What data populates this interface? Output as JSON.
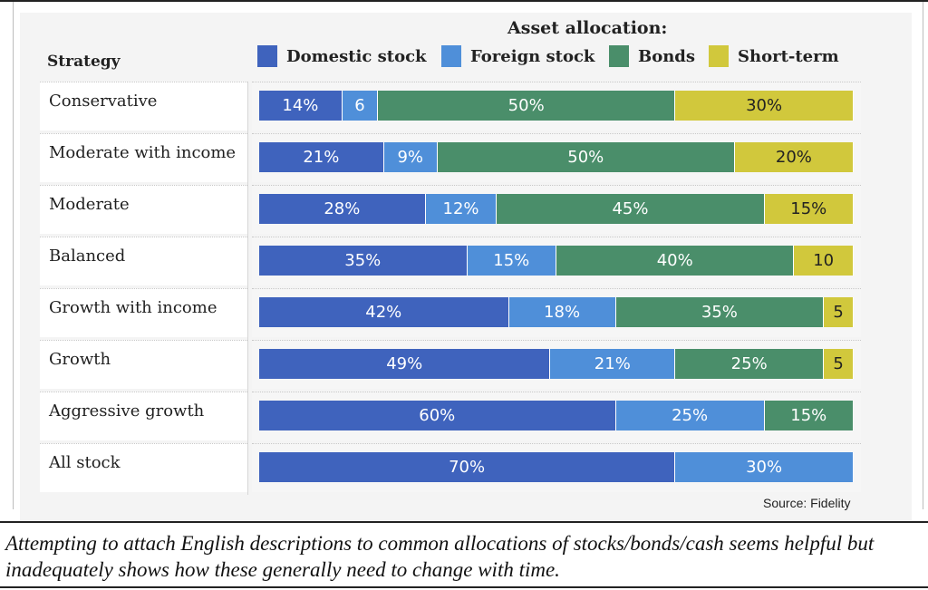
{
  "legend": {
    "title": "Asset allocation:",
    "items": [
      {
        "label": "Domestic stock",
        "color": "#3f63bd"
      },
      {
        "label": "Foreign stock",
        "color": "#4f8fd9"
      },
      {
        "label": "Bonds",
        "color": "#4a8e6a"
      },
      {
        "label": "Short-term",
        "color": "#d1c83c"
      }
    ]
  },
  "strategy_header": "Strategy",
  "source": "Source: Fidelity",
  "caption": "Attempting to attach English descriptions to common allocations of stocks/bonds/cash seems helpful but inadequately shows how these generally need to change with time.",
  "chart_data": {
    "type": "bar",
    "orientation": "horizontal",
    "stacked": true,
    "title": "",
    "legend_title": "Asset allocation:",
    "xlim": [
      0,
      100
    ],
    "categories": [
      "Conservative",
      "Moderate with income",
      "Moderate",
      "Balanced",
      "Growth with income",
      "Growth",
      "Aggressive growth",
      "All stock"
    ],
    "series": [
      {
        "name": "Domestic stock",
        "color": "#3f63bd",
        "values": [
          14,
          21,
          28,
          35,
          42,
          49,
          60,
          70
        ],
        "labels": [
          "14%",
          "21%",
          "28%",
          "35%",
          "42%",
          "49%",
          "60%",
          "70%"
        ]
      },
      {
        "name": "Foreign stock",
        "color": "#4f8fd9",
        "values": [
          6,
          9,
          12,
          15,
          18,
          21,
          25,
          30
        ],
        "labels": [
          "6",
          "9%",
          "12%",
          "15%",
          "18%",
          "21%",
          "25%",
          "30%"
        ]
      },
      {
        "name": "Bonds",
        "color": "#4a8e6a",
        "values": [
          50,
          50,
          45,
          40,
          35,
          25,
          15,
          0
        ],
        "labels": [
          "50%",
          "50%",
          "45%",
          "40%",
          "35%",
          "25%",
          "15%",
          ""
        ]
      },
      {
        "name": "Short-term",
        "color": "#d1c83c",
        "values": [
          30,
          20,
          15,
          10,
          5,
          5,
          0,
          0
        ],
        "labels": [
          "30%",
          "20%",
          "15%",
          "10",
          "5",
          "5",
          "",
          ""
        ]
      }
    ]
  }
}
